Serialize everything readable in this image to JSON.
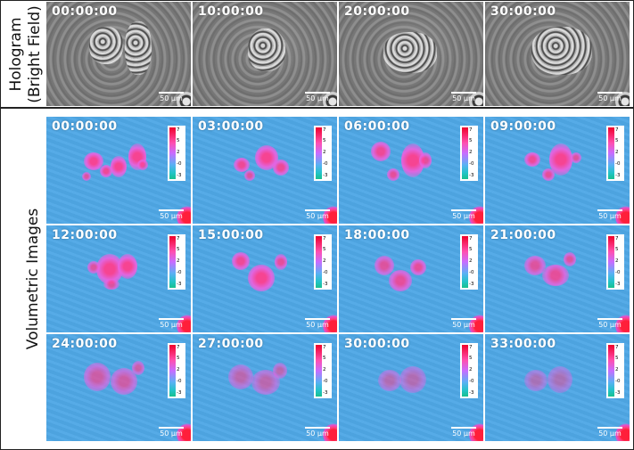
{
  "hologram": {
    "label_line1": "Hologram",
    "label_line2": "(Bright Field)",
    "panels": [
      {
        "time": "00:00:00",
        "scale": "50 µm"
      },
      {
        "time": "10:00:00",
        "scale": "50 µm"
      },
      {
        "time": "20:00:00",
        "scale": "50 µm"
      },
      {
        "time": "30:00:00",
        "scale": "50 µm"
      }
    ]
  },
  "volumetric": {
    "label": "Volumetric Images",
    "colorbar_ticks": [
      "7",
      "5",
      "2",
      "-0",
      "-3"
    ],
    "colors": {
      "background": "#4fa8e6",
      "blob": "#e862e0",
      "hot": "#f0002a"
    },
    "panels": [
      {
        "time": "00:00:00",
        "scale": "50 µm"
      },
      {
        "time": "03:00:00",
        "scale": "50 µm"
      },
      {
        "time": "06:00:00",
        "scale": "50 µm"
      },
      {
        "time": "09:00:00",
        "scale": "50 µm"
      },
      {
        "time": "12:00:00",
        "scale": "50 µm"
      },
      {
        "time": "15:00:00",
        "scale": "50 µm"
      },
      {
        "time": "18:00:00",
        "scale": "50 µm"
      },
      {
        "time": "21:00:00",
        "scale": "50 µm"
      },
      {
        "time": "24:00:00",
        "scale": "50 µm"
      },
      {
        "time": "27:00:00",
        "scale": "50 µm"
      },
      {
        "time": "30:00:00",
        "scale": "50 µm"
      },
      {
        "time": "33:00:00",
        "scale": "50 µm"
      }
    ]
  }
}
